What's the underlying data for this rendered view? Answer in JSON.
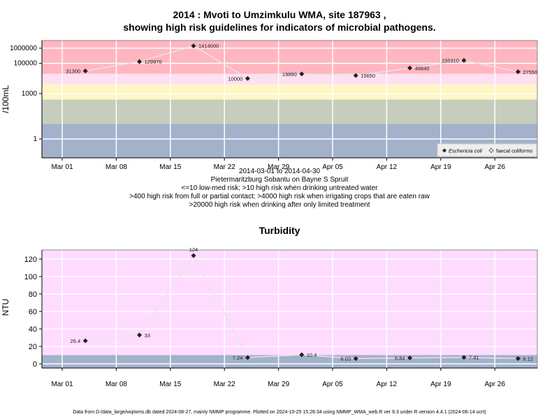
{
  "titles": {
    "line1": "2014 : Mvoti to Umzimkulu WMA, site 187963 ,",
    "line2": "showing high risk guidelines for indicators of microbial pathogens.",
    "turbidity": "Turbidity"
  },
  "captions": [
    "2014-03-01 to 2014-04-30",
    "Pietermaritzburg Sobantu on Bayne S Spruit",
    "<=10 low-med risk; >10 high risk when drinking untreated water",
    ">400 high risk from full or partial contact; >4000 high risk when irrigating crops that are eaten raw",
    ">20000 high risk when drinking after only limited treatment"
  ],
  "footer": "Data from D:/data_large/wq/wms.db dated 2024-08-27, mainly NMMP programme. Plotted on 2024-10-25 15:26:34 using NMMP_WMA_web.R ver 9.3 under R version 4.4.1 (2024-06-14 ucrt)",
  "colors": {
    "high_risk": "#ffb6c1",
    "contact": "#ffe0f0",
    "irrigation": "#fff6c4",
    "drinking": "#c6cdbd",
    "low_risk": "#a3b1cb",
    "turbidity_bg": "#ffdcff",
    "line": "#e6e6e6",
    "marker": "#222222"
  },
  "chart_data": [
    {
      "type": "scatter",
      "title": "",
      "ylabel": "/100mL",
      "yscale": "log",
      "x_tick_labels": [
        "Mar 01",
        "Mar 08",
        "Mar 15",
        "Mar 22",
        "Mar 29",
        "Apr 05",
        "Apr 12",
        "Apr 19",
        "Apr 26"
      ],
      "y_tick_labels": [
        "1",
        "1000",
        "100000",
        "1000000"
      ],
      "legend": [
        "Eschericia coli",
        "faecal coliforms"
      ],
      "legend_position": "bottom-right",
      "series": [
        {
          "name": "Eschericia coli",
          "x": [
            "2014-03-04",
            "2014-03-11",
            "2014-03-18",
            "2014-03-25",
            "2014-04-01",
            "2014-04-08",
            "2014-04-15",
            "2014-04-22",
            "2014-04-29"
          ],
          "values": [
            31300,
            129970,
            1414000,
            10000,
            19890,
            15650,
            48840,
            155310,
            27550
          ],
          "labels": [
            "31300",
            "129970",
            "1414000",
            "10000",
            "19890",
            "15650",
            "48840",
            "155310",
            "27550"
          ]
        }
      ],
      "bands": [
        {
          "from": 20000,
          "color": "high_risk"
        },
        {
          "from": 4000,
          "to": 20000,
          "color": "contact"
        },
        {
          "from": 400,
          "to": 4000,
          "color": "irrigation"
        },
        {
          "from": 10,
          "to": 400,
          "color": "drinking"
        },
        {
          "to": 10,
          "color": "low_risk"
        }
      ],
      "grid": true
    },
    {
      "type": "scatter",
      "title": "Turbidity",
      "ylabel": "NTU",
      "ylim": [
        -5,
        130
      ],
      "x_tick_labels": [
        "Mar 01",
        "Mar 08",
        "Mar 15",
        "Mar 22",
        "Mar 29",
        "Apr 05",
        "Apr 12",
        "Apr 19",
        "Apr 26"
      ],
      "y_tick_labels": [
        "0",
        "20",
        "40",
        "60",
        "80",
        "100",
        "120"
      ],
      "series": [
        {
          "name": "",
          "x": [
            "2014-03-04",
            "2014-03-11",
            "2014-03-18",
            "2014-03-25",
            "2014-04-01",
            "2014-04-08",
            "2014-04-15",
            "2014-04-22",
            "2014-04-29"
          ],
          "values": [
            26.4,
            33,
            124,
            7.24,
            10.4,
            6.03,
            6.84,
            7.41,
            6.12
          ],
          "labels": [
            "26.4",
            "33",
            "124",
            "7.24",
            "10.4",
            "6.03",
            "6.84",
            "7.41",
            "6.12"
          ]
        }
      ],
      "bands": [
        {
          "from": 10,
          "color": "turbidity_bg"
        },
        {
          "to": 10,
          "color": "low_risk"
        }
      ],
      "grid": true
    }
  ]
}
